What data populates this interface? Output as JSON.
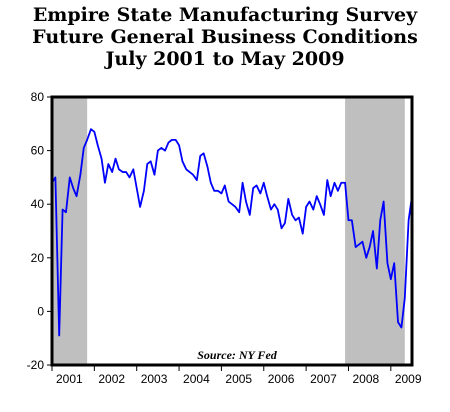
{
  "chart_data": {
    "type": "line",
    "title_lines": [
      "Empire State Manufacturing Survey",
      "Future General Business Conditions",
      "July 2001 to May 2009"
    ],
    "source": "Source: NY Fed",
    "ylim": [
      -20,
      80
    ],
    "y_ticks": [
      -20,
      0,
      20,
      40,
      60,
      80
    ],
    "x_range": [
      2001.0,
      2009.5
    ],
    "x_ticks": [
      "2001",
      "2002",
      "2003",
      "2004",
      "2005",
      "2006",
      "2007",
      "2008",
      "2009"
    ],
    "grid": false,
    "recessions": [
      {
        "start": 2001.0,
        "end": 2001.83
      },
      {
        "start": 2007.92,
        "end": 2009.33
      }
    ],
    "series": [
      {
        "color": "#0000ff",
        "points": [
          [
            2001.0,
            48
          ],
          [
            2001.08,
            50
          ],
          [
            2001.17,
            -9
          ],
          [
            2001.25,
            38
          ],
          [
            2001.33,
            37
          ],
          [
            2001.42,
            50
          ],
          [
            2001.5,
            46
          ],
          [
            2001.58,
            43
          ],
          [
            2001.67,
            51
          ],
          [
            2001.75,
            61
          ],
          [
            2001.83,
            64
          ],
          [
            2001.92,
            68
          ],
          [
            2002.0,
            67
          ],
          [
            2002.08,
            62
          ],
          [
            2002.17,
            57
          ],
          [
            2002.25,
            48
          ],
          [
            2002.33,
            55
          ],
          [
            2002.42,
            52
          ],
          [
            2002.5,
            57
          ],
          [
            2002.58,
            53
          ],
          [
            2002.67,
            52
          ],
          [
            2002.75,
            52
          ],
          [
            2002.83,
            50
          ],
          [
            2002.92,
            53
          ],
          [
            2003.0,
            46
          ],
          [
            2003.08,
            39
          ],
          [
            2003.17,
            45
          ],
          [
            2003.25,
            55
          ],
          [
            2003.33,
            56
          ],
          [
            2003.42,
            51
          ],
          [
            2003.5,
            60
          ],
          [
            2003.58,
            61
          ],
          [
            2003.67,
            60
          ],
          [
            2003.75,
            63
          ],
          [
            2003.83,
            64
          ],
          [
            2003.92,
            64
          ],
          [
            2004.0,
            62
          ],
          [
            2004.08,
            56
          ],
          [
            2004.17,
            53
          ],
          [
            2004.25,
            52
          ],
          [
            2004.33,
            51
          ],
          [
            2004.42,
            49
          ],
          [
            2004.5,
            58
          ],
          [
            2004.58,
            59
          ],
          [
            2004.67,
            54
          ],
          [
            2004.75,
            48
          ],
          [
            2004.83,
            45
          ],
          [
            2004.92,
            45
          ],
          [
            2005.0,
            44
          ],
          [
            2005.08,
            47
          ],
          [
            2005.17,
            41
          ],
          [
            2005.25,
            40
          ],
          [
            2005.33,
            39
          ],
          [
            2005.42,
            37
          ],
          [
            2005.5,
            48
          ],
          [
            2005.58,
            41
          ],
          [
            2005.67,
            36
          ],
          [
            2005.75,
            46
          ],
          [
            2005.83,
            47
          ],
          [
            2005.92,
            44
          ],
          [
            2006.0,
            48
          ],
          [
            2006.08,
            43
          ],
          [
            2006.17,
            38
          ],
          [
            2006.25,
            40
          ],
          [
            2006.33,
            38
          ],
          [
            2006.42,
            31
          ],
          [
            2006.5,
            33
          ],
          [
            2006.58,
            42
          ],
          [
            2006.67,
            36
          ],
          [
            2006.75,
            34
          ],
          [
            2006.83,
            35
          ],
          [
            2006.92,
            29
          ],
          [
            2007.0,
            39
          ],
          [
            2007.08,
            41
          ],
          [
            2007.17,
            38
          ],
          [
            2007.25,
            43
          ],
          [
            2007.33,
            40
          ],
          [
            2007.42,
            36
          ],
          [
            2007.5,
            49
          ],
          [
            2007.58,
            43
          ],
          [
            2007.67,
            48
          ],
          [
            2007.75,
            45
          ],
          [
            2007.83,
            48
          ],
          [
            2007.92,
            48
          ],
          [
            2008.0,
            34
          ],
          [
            2008.08,
            34
          ],
          [
            2008.17,
            24
          ],
          [
            2008.25,
            25
          ],
          [
            2008.33,
            26
          ],
          [
            2008.42,
            20
          ],
          [
            2008.5,
            24
          ],
          [
            2008.58,
            30
          ],
          [
            2008.67,
            16
          ],
          [
            2008.75,
            34
          ],
          [
            2008.83,
            41
          ],
          [
            2008.92,
            18
          ],
          [
            2009.0,
            12
          ],
          [
            2009.08,
            18
          ],
          [
            2009.17,
            -4
          ],
          [
            2009.25,
            -6
          ],
          [
            2009.33,
            5
          ],
          [
            2009.42,
            34
          ],
          [
            2009.5,
            43
          ]
        ]
      }
    ]
  }
}
